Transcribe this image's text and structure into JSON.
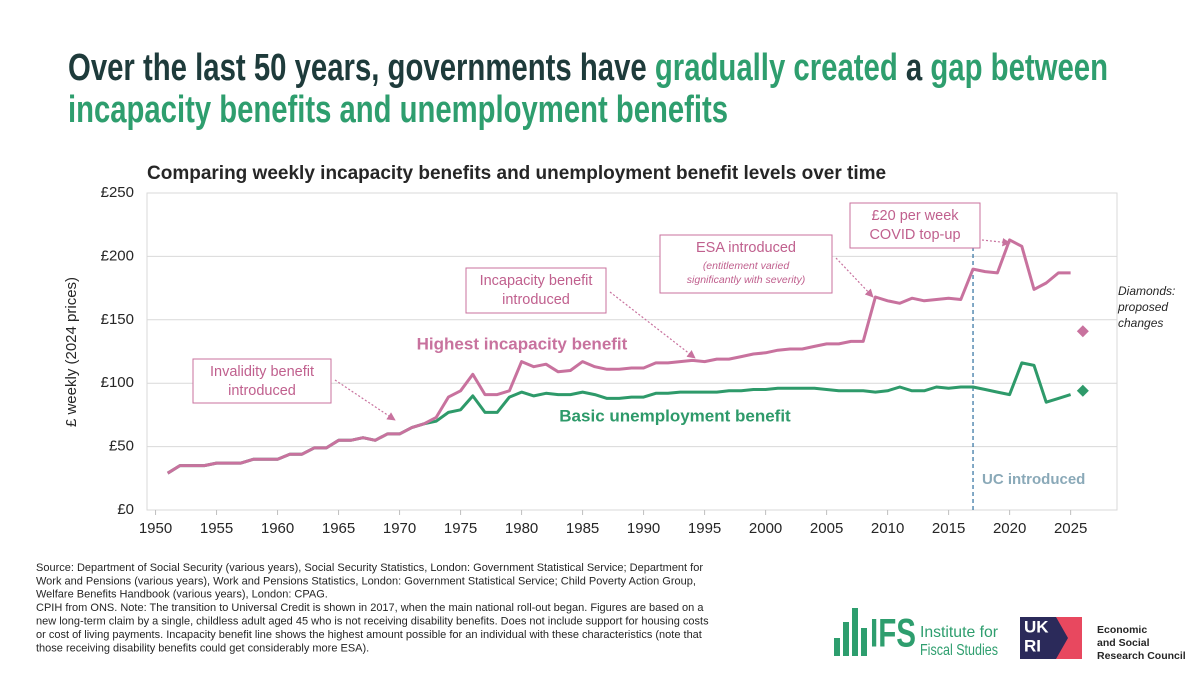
{
  "title_lines": [
    [
      {
        "text": "Over the last 50 years, governments have ",
        "color": "#1e3b3b"
      },
      {
        "text": "gradually created",
        "color": "#2e9e6e"
      },
      {
        "text": " a ",
        "color": "#1e3b3b"
      },
      {
        "text": "gap between",
        "color": "#2e9e6e"
      }
    ],
    [
      {
        "text": "incapacity benefits and unemployment benefits",
        "color": "#2e9e6e"
      }
    ]
  ],
  "chart_data": {
    "type": "line",
    "title": "Comparing weekly incapacity benefits and unemployment benefit levels over time",
    "ylabel": "£ weekly (2024 prices)",
    "x": [
      1951,
      1952,
      1953,
      1954,
      1955,
      1956,
      1957,
      1958,
      1959,
      1960,
      1961,
      1962,
      1963,
      1964,
      1965,
      1966,
      1967,
      1968,
      1969,
      1970,
      1971,
      1972,
      1973,
      1974,
      1975,
      1976,
      1977,
      1978,
      1979,
      1980,
      1981,
      1982,
      1983,
      1984,
      1985,
      1986,
      1987,
      1988,
      1989,
      1990,
      1991,
      1992,
      1993,
      1994,
      1995,
      1996,
      1997,
      1998,
      1999,
      2000,
      2001,
      2002,
      2003,
      2004,
      2005,
      2006,
      2007,
      2008,
      2009,
      2010,
      2011,
      2012,
      2013,
      2014,
      2015,
      2016,
      2017,
      2018,
      2019,
      2020,
      2021,
      2022,
      2023,
      2024,
      2025
    ],
    "series": [
      {
        "name": "Highest incapacity benefit",
        "color": "#c8729e",
        "values": [
          29,
          35,
          35,
          35,
          37,
          37,
          37,
          40,
          40,
          40,
          44,
          44,
          49,
          49,
          55,
          55,
          57,
          55,
          60,
          60,
          65,
          68,
          73,
          89,
          94,
          107,
          91,
          91,
          94,
          117,
          113,
          115,
          109,
          110,
          117,
          113,
          111,
          111,
          112,
          112,
          116,
          116,
          117,
          118,
          117,
          119,
          119,
          121,
          123,
          124,
          126,
          127,
          127,
          129,
          131,
          131,
          133,
          133,
          168,
          165,
          163,
          167,
          165,
          166,
          167,
          166,
          190,
          188,
          187,
          213,
          208,
          174,
          179,
          187,
          187
        ]
      },
      {
        "name": "Basic unemployment benefit",
        "color": "#2e9a6a",
        "values": [
          29,
          35,
          35,
          35,
          37,
          37,
          37,
          40,
          40,
          40,
          44,
          44,
          49,
          49,
          55,
          55,
          57,
          55,
          60,
          60,
          65,
          68,
          70,
          77,
          79,
          90,
          77,
          77,
          89,
          93,
          90,
          92,
          91,
          91,
          93,
          91,
          88,
          88,
          89,
          89,
          92,
          92,
          93,
          93,
          93,
          93,
          94,
          94,
          95,
          95,
          96,
          96,
          96,
          96,
          95,
          94,
          94,
          94,
          93,
          94,
          97,
          94,
          94,
          97,
          96,
          97,
          97,
          95,
          93,
          91,
          116,
          114,
          85,
          88,
          91
        ]
      }
    ],
    "diamonds": {
      "x": 2026,
      "values": [
        141,
        94
      ]
    },
    "xlim": [
      1949.3,
      2028.8
    ],
    "ylim": [
      0,
      250
    ],
    "xticks": [
      1950,
      1955,
      1960,
      1965,
      1970,
      1975,
      1980,
      1985,
      1990,
      1995,
      2000,
      2005,
      2010,
      2015,
      2020,
      2025
    ],
    "yticks": [
      {
        "value": 0,
        "label": "£0"
      },
      {
        "value": 50,
        "label": "£50"
      },
      {
        "value": 100,
        "label": "£100"
      },
      {
        "value": 150,
        "label": "£150"
      },
      {
        "value": 200,
        "label": "£200"
      },
      {
        "value": 250,
        "label": "£250"
      }
    ],
    "grid": true,
    "uc_line": {
      "x": 2017,
      "label": "UC introduced"
    },
    "annotations": [
      {
        "lines": [
          "Invalidity benefit",
          "introduced"
        ]
      },
      {
        "lines": [
          "Incapacity benefit",
          "introduced"
        ]
      },
      {
        "lines": [
          "ESA introduced"
        ],
        "note": [
          "(entitlement varied",
          "significantly with severity)"
        ]
      },
      {
        "lines": [
          "£20 per week",
          "COVID top-up"
        ]
      }
    ],
    "diamond_note": [
      "Diamonds:",
      "proposed",
      "changes"
    ]
  },
  "footer": [
    "Source: Department of Social Security (various years), Social Security Statistics, London: Government Statistical Service; Department for",
    "Work and Pensions (various years), Work and Pensions Statistics, London: Government Statistical Service; Child Poverty Action Group,",
    "Welfare Benefits Handbook (various years), London: CPAG.",
    "CPIH from ONS. Note: The transition to Universal Credit is shown in 2017, when the main national roll-out began. Figures are based on a",
    "new long-term claim by a single, childless adult aged 45 who is not receiving disability benefits. Does not include support for housing costs",
    "or cost of living payments. Incapacity benefit line shows the highest amount possible for an individual with these characteristics (note that",
    "those receiving disability benefits could get considerably more ESA)."
  ],
  "logos": {
    "ifs": {
      "mark": "IFS",
      "lines": [
        "Institute for",
        "Fiscal Studies"
      ]
    },
    "ukri": {
      "mark": [
        "UK",
        "RI"
      ],
      "lines": [
        "Economic",
        "and Social",
        "Research Council"
      ]
    }
  }
}
